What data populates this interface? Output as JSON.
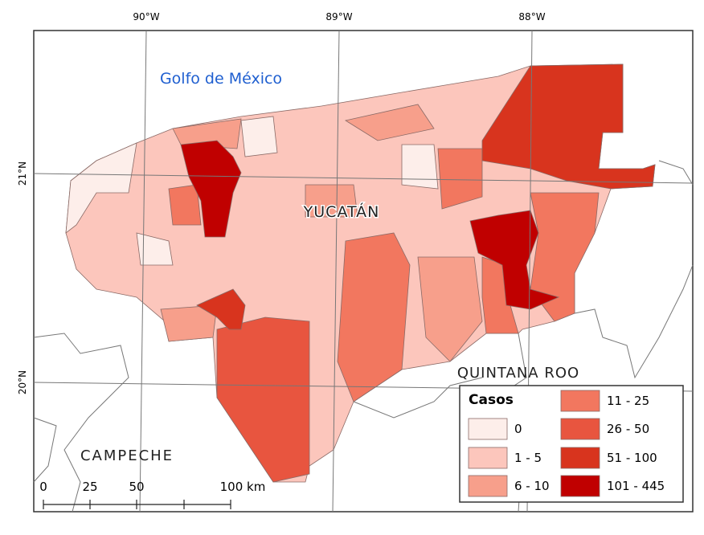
{
  "graticule": {
    "lon_labels": [
      "90°W",
      "89°W",
      "88°W"
    ],
    "lat_labels": [
      "21°N",
      "20°N"
    ]
  },
  "places": {
    "sea": "Golfo de México",
    "state": "YUCATÁN",
    "neighbors": [
      "QUINTANA ROO",
      "CAMPECHE"
    ]
  },
  "legend": {
    "title": "Casos",
    "items": [
      {
        "label": "0",
        "color": "#fdeeea"
      },
      {
        "label": "1 - 5",
        "color": "#fcc6bc"
      },
      {
        "label": "6 - 10",
        "color": "#f79f8b"
      },
      {
        "label": "11 - 25",
        "color": "#f2775f"
      },
      {
        "label": "26 - 50",
        "color": "#e8553f"
      },
      {
        "label": "51 - 100",
        "color": "#d8341e"
      },
      {
        "label": "101 - 445",
        "color": "#c00000"
      }
    ]
  },
  "scale_bar": {
    "labels": [
      "0",
      "25",
      "50",
      "100 km"
    ]
  }
}
